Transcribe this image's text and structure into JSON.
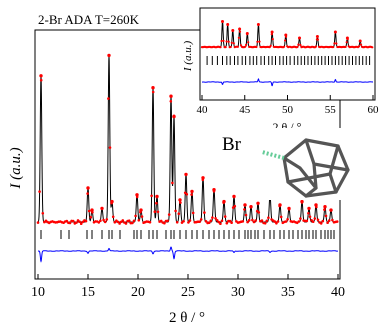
{
  "chart_data": [
    {
      "type": "line",
      "title": "2-Br ADA T=260K",
      "xlabel": "2 θ / °",
      "ylabel": "I (a.u.)",
      "xlim": [
        10,
        40
      ],
      "x_ticks": [
        "10",
        "15",
        "20",
        "25",
        "30",
        "35",
        "40"
      ],
      "grid": false,
      "series": [
        {
          "role": "observed",
          "style": "red-dots",
          "color": "#ff0000",
          "x": [
            10.3,
            15.0,
            15.4,
            16.4,
            17.1,
            17.4,
            19.9,
            20.3,
            21.5,
            21.9,
            23.3,
            23.6,
            24.2,
            24.8,
            25.4,
            26.5,
            27.6,
            28.6,
            29.6,
            30.7,
            31.3,
            32.0,
            33.2,
            34.2,
            35.1,
            36.4,
            37.1,
            37.8,
            38.7,
            39.3
          ],
          "y": [
            0.86,
            0.2,
            0.07,
            0.08,
            0.98,
            0.12,
            0.16,
            0.07,
            0.79,
            0.15,
            0.74,
            0.62,
            0.13,
            0.28,
            0.18,
            0.26,
            0.19,
            0.12,
            0.15,
            0.1,
            0.09,
            0.11,
            0.16,
            0.1,
            0.08,
            0.12,
            0.08,
            0.1,
            0.09,
            0.07
          ]
        },
        {
          "role": "calculated",
          "style": "black-line",
          "color": "#000000"
        },
        {
          "role": "difference",
          "style": "blue-line",
          "color": "#0000ff",
          "x": [
            10.3,
            15.0,
            17.1,
            21.5,
            23.3,
            23.6,
            29.6,
            33.2
          ],
          "y": [
            -0.25,
            -0.05,
            0.06,
            -0.06,
            0.1,
            -0.18,
            -0.04,
            -0.03
          ]
        }
      ],
      "reflection_ticks": [
        10.3,
        12.3,
        13.1,
        14.9,
        15.4,
        16.4,
        17.1,
        17.4,
        18.2,
        19.6,
        19.9,
        20.3,
        21.1,
        21.5,
        21.9,
        22.8,
        23.3,
        23.6,
        24.2,
        24.8,
        25.4,
        25.9,
        26.5,
        27.1,
        27.6,
        28.1,
        28.6,
        29.1,
        29.6,
        30.1,
        30.7,
        31.0,
        31.3,
        31.7,
        32.0,
        32.6,
        33.2,
        33.6,
        34.2,
        34.6,
        35.1,
        35.5,
        36.0,
        36.4,
        36.8,
        37.1,
        37.5,
        37.8,
        38.3,
        38.7,
        39.0,
        39.3,
        39.6
      ]
    },
    {
      "type": "line",
      "role": "inset",
      "xlabel": "2 θ / °",
      "ylabel": "I (a.u.)",
      "xlim": [
        40,
        60
      ],
      "x_ticks": [
        "40",
        "45",
        "50",
        "55",
        "60"
      ],
      "grid": false,
      "series": [
        {
          "role": "observed",
          "style": "red-dots",
          "color": "#ff0000",
          "x": [
            42.4,
            43.0,
            43.6,
            44.4,
            45.3,
            46.6,
            48.2,
            49.8,
            51.4,
            53.5,
            55.6,
            57.0,
            58.5
          ],
          "y": [
            0.85,
            0.75,
            0.55,
            0.6,
            0.45,
            0.75,
            0.5,
            0.4,
            0.3,
            0.35,
            0.5,
            0.3,
            0.2
          ]
        },
        {
          "role": "calculated",
          "style": "black-line",
          "color": "#000000"
        },
        {
          "role": "difference",
          "style": "blue-line",
          "color": "#0000ff",
          "x": [
            42.4,
            46.6,
            48.2,
            55.6
          ],
          "y": [
            -0.1,
            0.12,
            -0.15,
            0.1
          ]
        }
      ],
      "reflection_ticks": [
        40.6,
        41.2,
        41.8,
        42.4,
        42.9,
        43.3,
        43.8,
        44.2,
        44.7,
        45.1,
        45.6,
        46.0,
        46.4,
        46.9,
        47.3,
        47.8,
        48.2,
        48.6,
        49.1,
        49.5,
        49.9,
        50.3,
        50.8,
        51.2,
        51.6,
        52.0,
        52.4,
        52.8,
        53.2,
        53.6,
        54.0,
        54.4,
        54.8,
        55.2,
        55.6,
        56.0,
        56.4,
        56.8,
        57.2,
        57.6,
        58.0,
        58.4,
        58.8,
        59.2,
        59.6
      ]
    }
  ],
  "molecule": {
    "label": "Br",
    "name": "adamantane-molecule-icon"
  }
}
